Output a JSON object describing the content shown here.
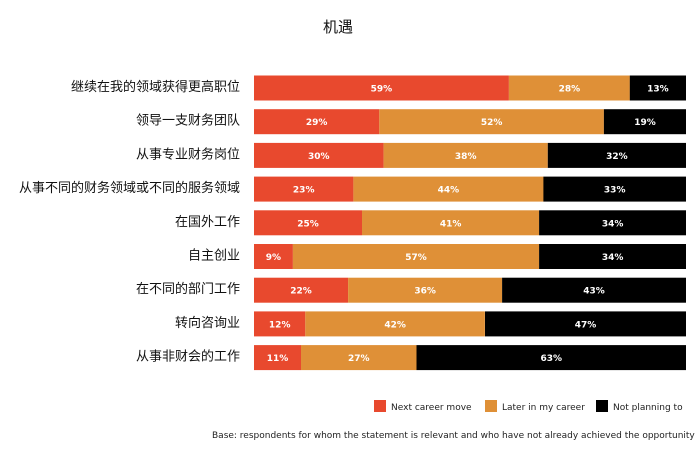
{
  "chart_data": {
    "type": "bar",
    "orientation": "horizontal",
    "stacked": true,
    "title": "机遇",
    "categories": [
      "继续在我的领域获得更高职位",
      "领导一支财务团队",
      "从事专业财务岗位",
      "从事不同的财务领域或不同的服务领域",
      "在国外工作",
      "自主创业",
      "在不同的部门工作",
      "转向咨询业",
      "从事非财会的工作"
    ],
    "series": [
      {
        "name": "Next career move",
        "color": "#e8492e",
        "values": [
          59,
          29,
          30,
          23,
          25,
          9,
          22,
          12,
          11
        ]
      },
      {
        "name": "Later in my career",
        "color": "#df9037",
        "values": [
          28,
          52,
          38,
          44,
          41,
          57,
          36,
          42,
          27
        ]
      },
      {
        "name": "Not planning to",
        "color": "#000000",
        "values": [
          13,
          19,
          32,
          33,
          34,
          34,
          43,
          47,
          63
        ]
      }
    ],
    "value_suffix": "%",
    "label_colors": [
      "#ffffff",
      "#ffffff",
      "#ffffff"
    ],
    "legend_position": "bottom-right",
    "grid": false,
    "footnote": "Base: respondents for whom the statement is relevant and who have not already achieved the opportunity"
  }
}
